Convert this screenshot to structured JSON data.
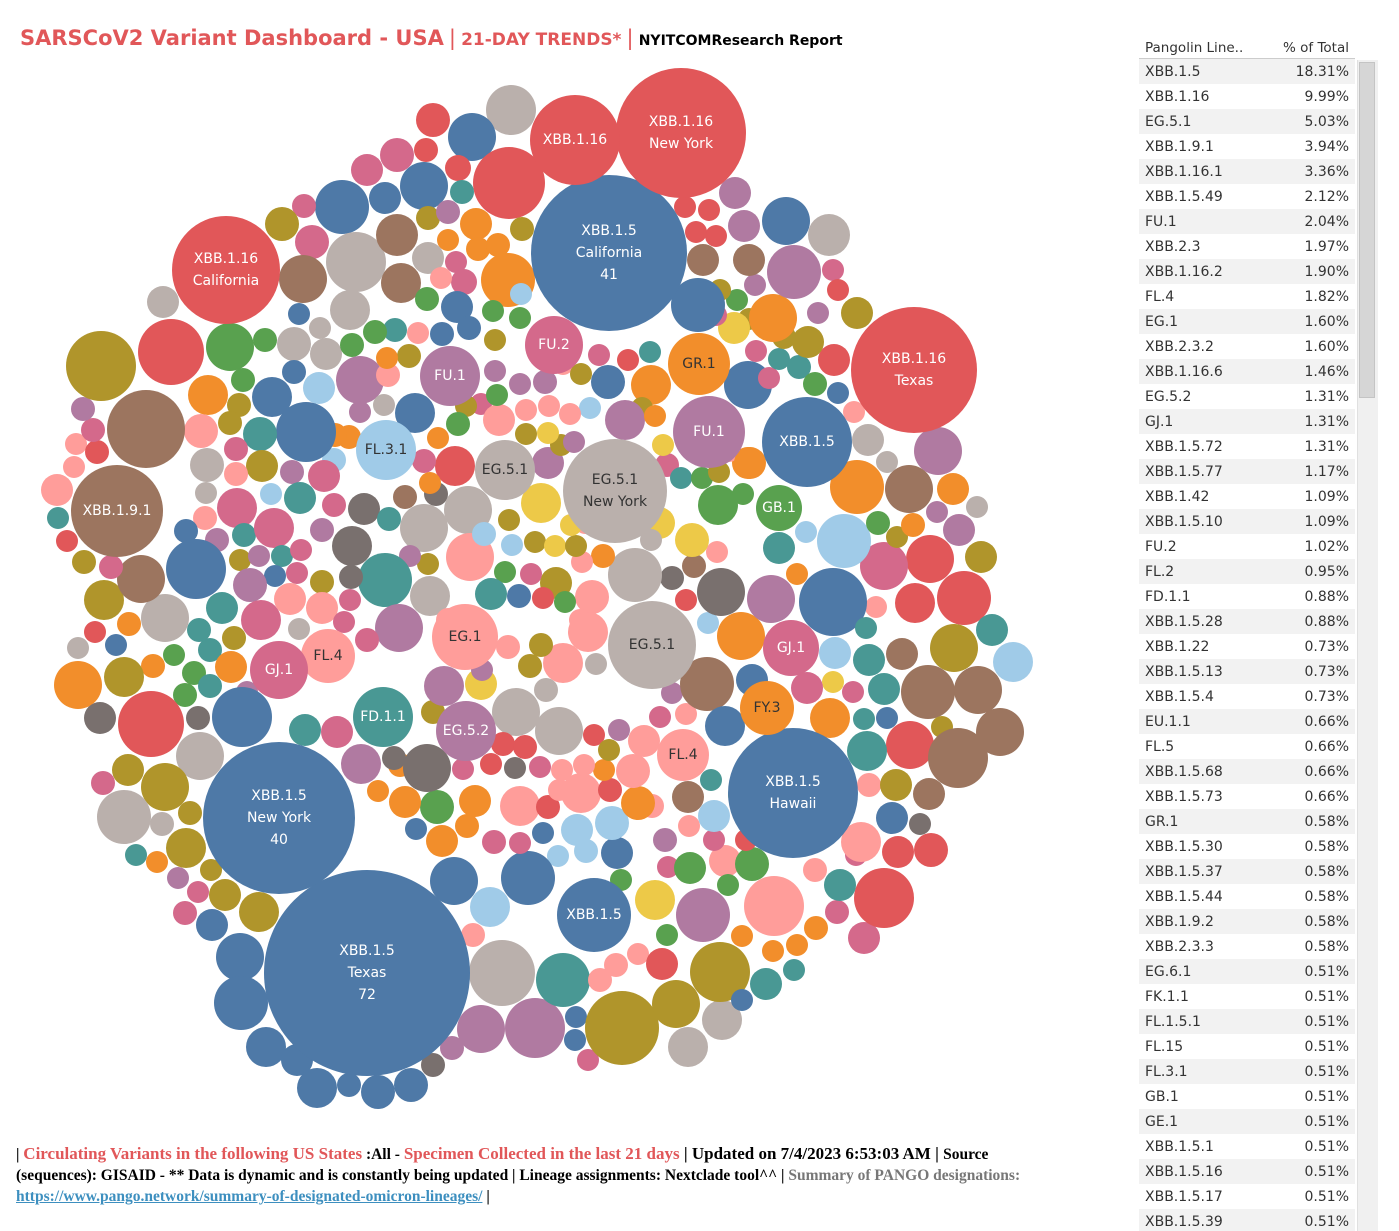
{
  "title": {
    "main": "SARSCoV2 Variant Dashboard - USA",
    "separator": "|",
    "trends": "21-DAY TRENDS*",
    "report": "NYITCOMResearch Report"
  },
  "colors": {
    "blue": "#4e79a7",
    "red": "#e15759",
    "orange": "#f28e2b",
    "green": "#59a14f",
    "olive": "#b0952b",
    "teal": "#499894",
    "pink": "#d4698b",
    "purple": "#b07aa1",
    "lightblue": "#a0cbe8",
    "salmon": "#ff9d9a",
    "brown": "#9c755f",
    "gray": "#bab0ac",
    "darkgray": "#79706e"
  },
  "chart_data": [
    {
      "type": "bubble",
      "labeled_bubbles": [
        {
          "lineage": "XBB.1.5",
          "state": "Texas",
          "value": 72
        },
        {
          "lineage": "XBB.1.5",
          "state": "California",
          "value": 41
        },
        {
          "lineage": "XBB.1.5",
          "state": "New York",
          "value": 40
        },
        {
          "lineage": "XBB.1.5",
          "state": "Hawaii"
        },
        {
          "lineage": "XBB.1.16",
          "state": "New York"
        },
        {
          "lineage": "XBB.1.16",
          "state": "California"
        },
        {
          "lineage": "XBB.1.16",
          "state": "Texas"
        },
        {
          "lineage": "XBB.1.16"
        },
        {
          "lineage": "EG.5.1",
          "state": "New York"
        },
        {
          "lineage": "EG.5.1"
        },
        {
          "lineage": "EG.5.1"
        },
        {
          "lineage": "XBB.1.9.1"
        },
        {
          "lineage": "XBB.1.5"
        },
        {
          "lineage": "XBB.1.5"
        },
        {
          "lineage": "FU.1"
        },
        {
          "lineage": "FU.1"
        },
        {
          "lineage": "FU.2"
        },
        {
          "lineage": "GR.1"
        },
        {
          "lineage": "GB.1"
        },
        {
          "lineage": "FL.3.1"
        },
        {
          "lineage": "EG.1"
        },
        {
          "lineage": "FL.4"
        },
        {
          "lineage": "FL.4"
        },
        {
          "lineage": "GJ.1"
        },
        {
          "lineage": "GJ.1"
        },
        {
          "lineage": "FD.1.1"
        },
        {
          "lineage": "EG.5.2"
        },
        {
          "lineage": "FY.3"
        }
      ]
    },
    {
      "type": "table",
      "columns": [
        "Pangolin Line..",
        "% of Total"
      ],
      "rows": [
        [
          "XBB.1.5",
          "18.31%"
        ],
        [
          "XBB.1.16",
          "9.99%"
        ],
        [
          "EG.5.1",
          "5.03%"
        ],
        [
          "XBB.1.9.1",
          "3.94%"
        ],
        [
          "XBB.1.16.1",
          "3.36%"
        ],
        [
          "XBB.1.5.49",
          "2.12%"
        ],
        [
          "FU.1",
          "2.04%"
        ],
        [
          "XBB.2.3",
          "1.97%"
        ],
        [
          "XBB.1.16.2",
          "1.90%"
        ],
        [
          "FL.4",
          "1.82%"
        ],
        [
          "EG.1",
          "1.60%"
        ],
        [
          "XBB.2.3.2",
          "1.60%"
        ],
        [
          "XBB.1.16.6",
          "1.46%"
        ],
        [
          "EG.5.2",
          "1.31%"
        ],
        [
          "GJ.1",
          "1.31%"
        ],
        [
          "XBB.1.5.72",
          "1.31%"
        ],
        [
          "XBB.1.5.77",
          "1.17%"
        ],
        [
          "XBB.1.42",
          "1.09%"
        ],
        [
          "XBB.1.5.10",
          "1.09%"
        ],
        [
          "FU.2",
          "1.02%"
        ],
        [
          "FL.2",
          "0.95%"
        ],
        [
          "FD.1.1",
          "0.88%"
        ],
        [
          "XBB.1.5.28",
          "0.88%"
        ],
        [
          "XBB.1.22",
          "0.73%"
        ],
        [
          "XBB.1.5.13",
          "0.73%"
        ],
        [
          "XBB.1.5.4",
          "0.73%"
        ],
        [
          "EU.1.1",
          "0.66%"
        ],
        [
          "FL.5",
          "0.66%"
        ],
        [
          "XBB.1.5.68",
          "0.66%"
        ],
        [
          "XBB.1.5.73",
          "0.66%"
        ],
        [
          "GR.1",
          "0.58%"
        ],
        [
          "XBB.1.5.30",
          "0.58%"
        ],
        [
          "XBB.1.5.37",
          "0.58%"
        ],
        [
          "XBB.1.5.44",
          "0.58%"
        ],
        [
          "XBB.1.9.2",
          "0.58%"
        ],
        [
          "XBB.2.3.3",
          "0.58%"
        ],
        [
          "EG.6.1",
          "0.51%"
        ],
        [
          "FK.1.1",
          "0.51%"
        ],
        [
          "FL.1.5.1",
          "0.51%"
        ],
        [
          "FL.15",
          "0.51%"
        ],
        [
          "FL.3.1",
          "0.51%"
        ],
        [
          "GB.1",
          "0.51%"
        ],
        [
          "GE.1",
          "0.51%"
        ],
        [
          "XBB.1.5.1",
          "0.51%"
        ],
        [
          "XBB.1.5.16",
          "0.51%"
        ],
        [
          "XBB.1.5.17",
          "0.51%"
        ],
        [
          "XBB.1.5.39",
          "0.51%"
        ]
      ]
    }
  ],
  "footer": {
    "p1": "| ",
    "p2": "Circulating Variants in the following US States",
    "p3": " :All - ",
    "p4": "Specimen Collected in the last 21 days",
    "p5": " | Updated on 7/4/2023 6:53:03 AM | ",
    "p6": "Source",
    "p7": "(sequences): GISAID - ** Data is dynamic and is constantly being updated | Lineage assignments: Nextclade tool^^ | ",
    "p8": "Summary of PANGO designations:",
    "link": "https://www.pango.network/summary-of-designated-omicron-lineages/",
    "p9": " |"
  }
}
